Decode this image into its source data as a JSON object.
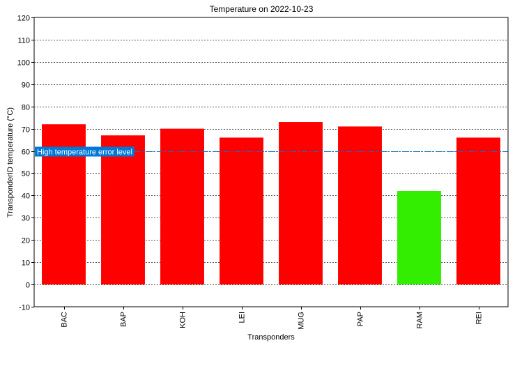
{
  "chart_data": {
    "type": "bar",
    "title": "Temperature on 2022-10-23",
    "xlabel": "Transponders",
    "ylabel": "TransponderID temperature (°C)",
    "categories": [
      "BAC",
      "BAP",
      "KOH",
      "LEI",
      "MUG",
      "PAP",
      "RAM",
      "REI"
    ],
    "values": [
      72,
      67,
      70,
      66,
      73,
      71,
      42,
      66
    ],
    "bar_colors": [
      "#ff0000",
      "#ff0000",
      "#ff0000",
      "#ff0000",
      "#ff0000",
      "#ff0000",
      "#33ee00",
      "#ff0000"
    ],
    "ylim": [
      -10,
      120
    ],
    "yticks": [
      -10,
      0,
      10,
      20,
      30,
      40,
      50,
      60,
      70,
      80,
      90,
      100,
      110,
      120
    ],
    "grid": true,
    "threshold": {
      "value": 60,
      "label": "High temperature error level",
      "line_color": "#0077cc",
      "label_bg": "#0078d7"
    }
  }
}
